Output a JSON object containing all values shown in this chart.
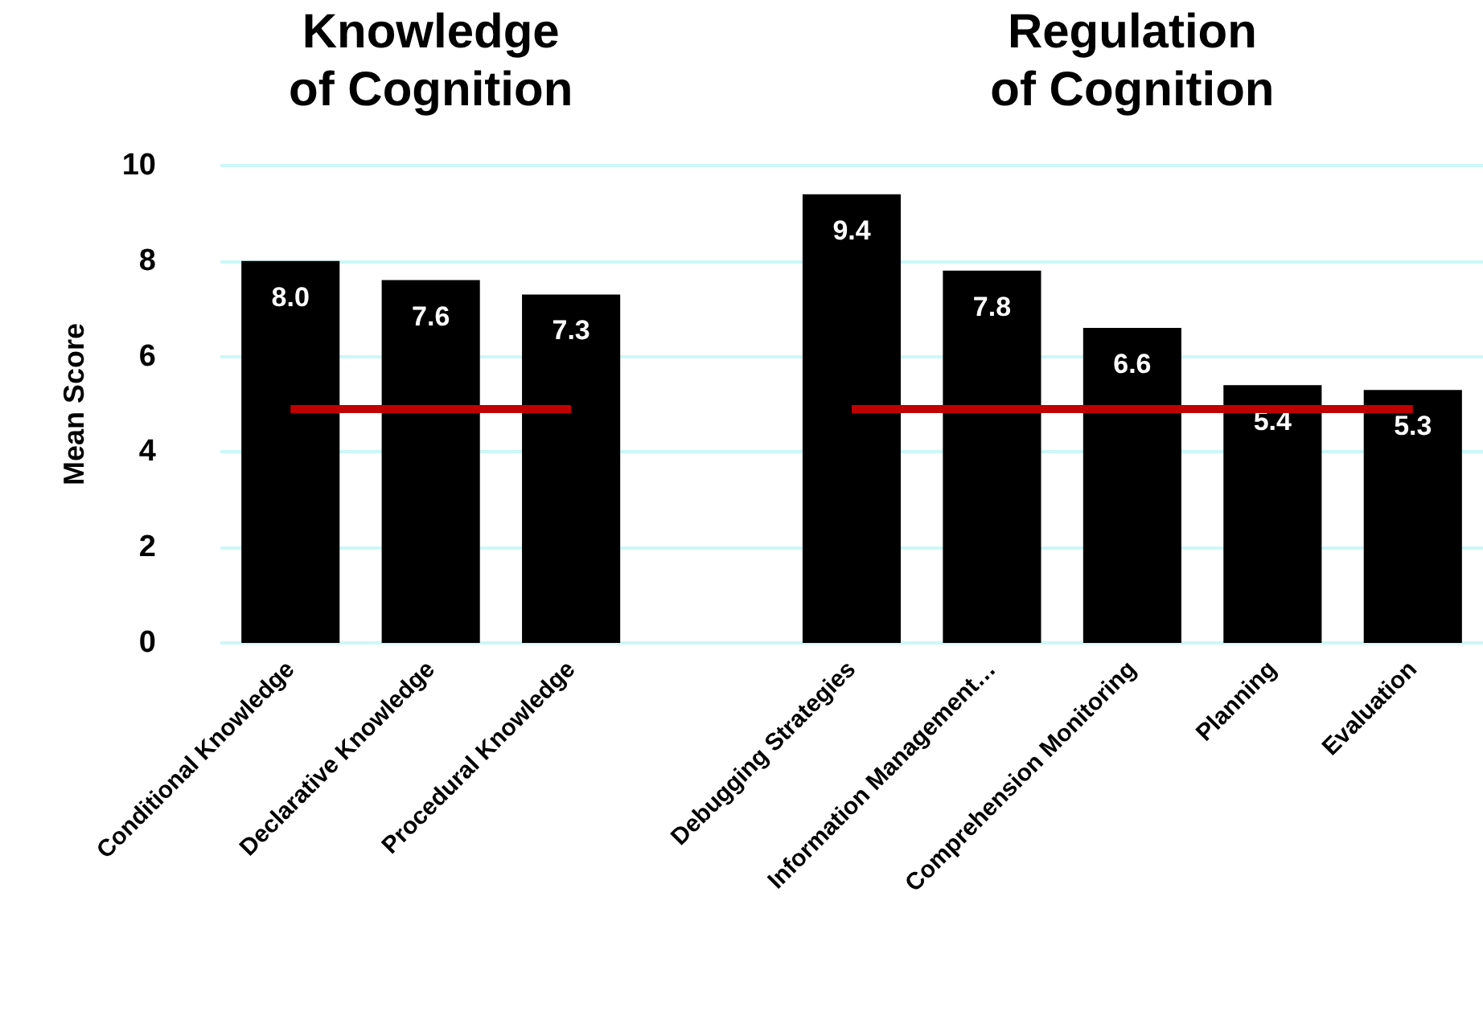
{
  "chart_data": {
    "type": "bar",
    "ylabel": "Mean Score",
    "categories": [
      "Conditional Knowledge",
      "Declarative Knowledge",
      "Procedural Knowledge",
      null,
      "Debugging Strategies",
      "Information Management…",
      "Comprehension Monitoring",
      "Planning",
      "Evaluation"
    ],
    "series": [
      {
        "color": "#000000",
        "values": [
          8.0,
          7.6,
          7.3,
          null,
          9.4,
          7.8,
          6.6,
          5.4,
          5.3
        ],
        "value_labels": [
          "8.0",
          "7.6",
          "7.3",
          null,
          "9.4",
          "7.8",
          "6.6",
          "5.4",
          "5.3"
        ]
      },
      {
        "type": "line",
        "color": "#c00000",
        "values": [
          4.9,
          4.9,
          4.9,
          null,
          4.9,
          4.9,
          4.9,
          4.9,
          4.9
        ]
      }
    ],
    "annotations": [
      "Knowledge\nof Cognition",
      "Regulation\nof Cognition"
    ],
    "ylim": [
      0,
      10
    ],
    "yticks": [
      0,
      2,
      4,
      6,
      8,
      10
    ],
    "grid": "y",
    "marker": "none",
    "line_style": "solid"
  }
}
